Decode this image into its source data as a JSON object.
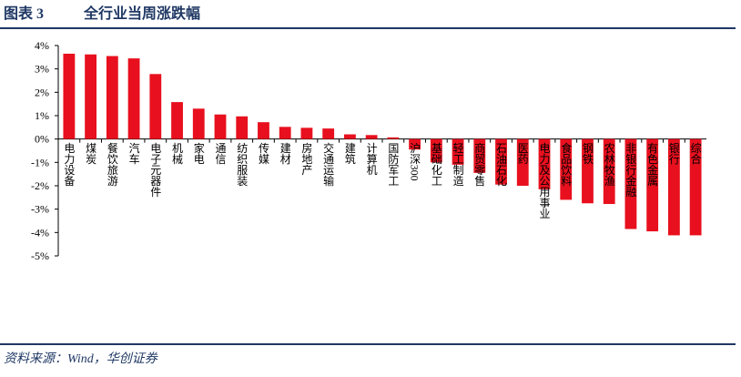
{
  "figure_label": "图表 3",
  "chart_data": {
    "type": "bar",
    "title": "全行业当周涨跌幅",
    "categories": [
      "电力设备",
      "煤炭",
      "餐饮旅游",
      "汽车",
      "电子元器件",
      "机械",
      "家电",
      "通信",
      "纺织服装",
      "传媒",
      "建材",
      "房地产",
      "交通运输",
      "建筑",
      "计算机",
      "国防军工",
      "沪深300",
      "基础化工",
      "轻工制造",
      "商贸零售",
      "石油石化",
      "医药",
      "电力及公用事业",
      "食品饮料",
      "钢铁",
      "农林牧渔",
      "非银行金融",
      "有色金属",
      "银行",
      "综合"
    ],
    "values": [
      3.65,
      3.62,
      3.55,
      3.45,
      2.78,
      1.58,
      1.3,
      1.05,
      0.97,
      0.72,
      0.52,
      0.48,
      0.45,
      0.2,
      0.17,
      0.07,
      -0.45,
      -1.0,
      -1.1,
      -1.45,
      -1.95,
      -2.0,
      -2.15,
      -2.6,
      -2.75,
      -2.78,
      -3.85,
      -3.95,
      -4.12,
      -4.12
    ],
    "color": "#e8101e",
    "ylim": [
      -5,
      4
    ],
    "yticks": [
      {
        "value": -5,
        "label": "-5%"
      },
      {
        "value": -4,
        "label": "-4%"
      },
      {
        "value": -3,
        "label": "-3%"
      },
      {
        "value": -2,
        "label": "-2%"
      },
      {
        "value": -1,
        "label": "-1%"
      },
      {
        "value": 0,
        "label": "0%"
      },
      {
        "value": 1,
        "label": "1%"
      },
      {
        "value": 2,
        "label": "2%"
      },
      {
        "value": 3,
        "label": "3%"
      },
      {
        "value": 4,
        "label": "4%"
      }
    ],
    "grid": false
  },
  "source": "资料来源：Wind，华创证券"
}
